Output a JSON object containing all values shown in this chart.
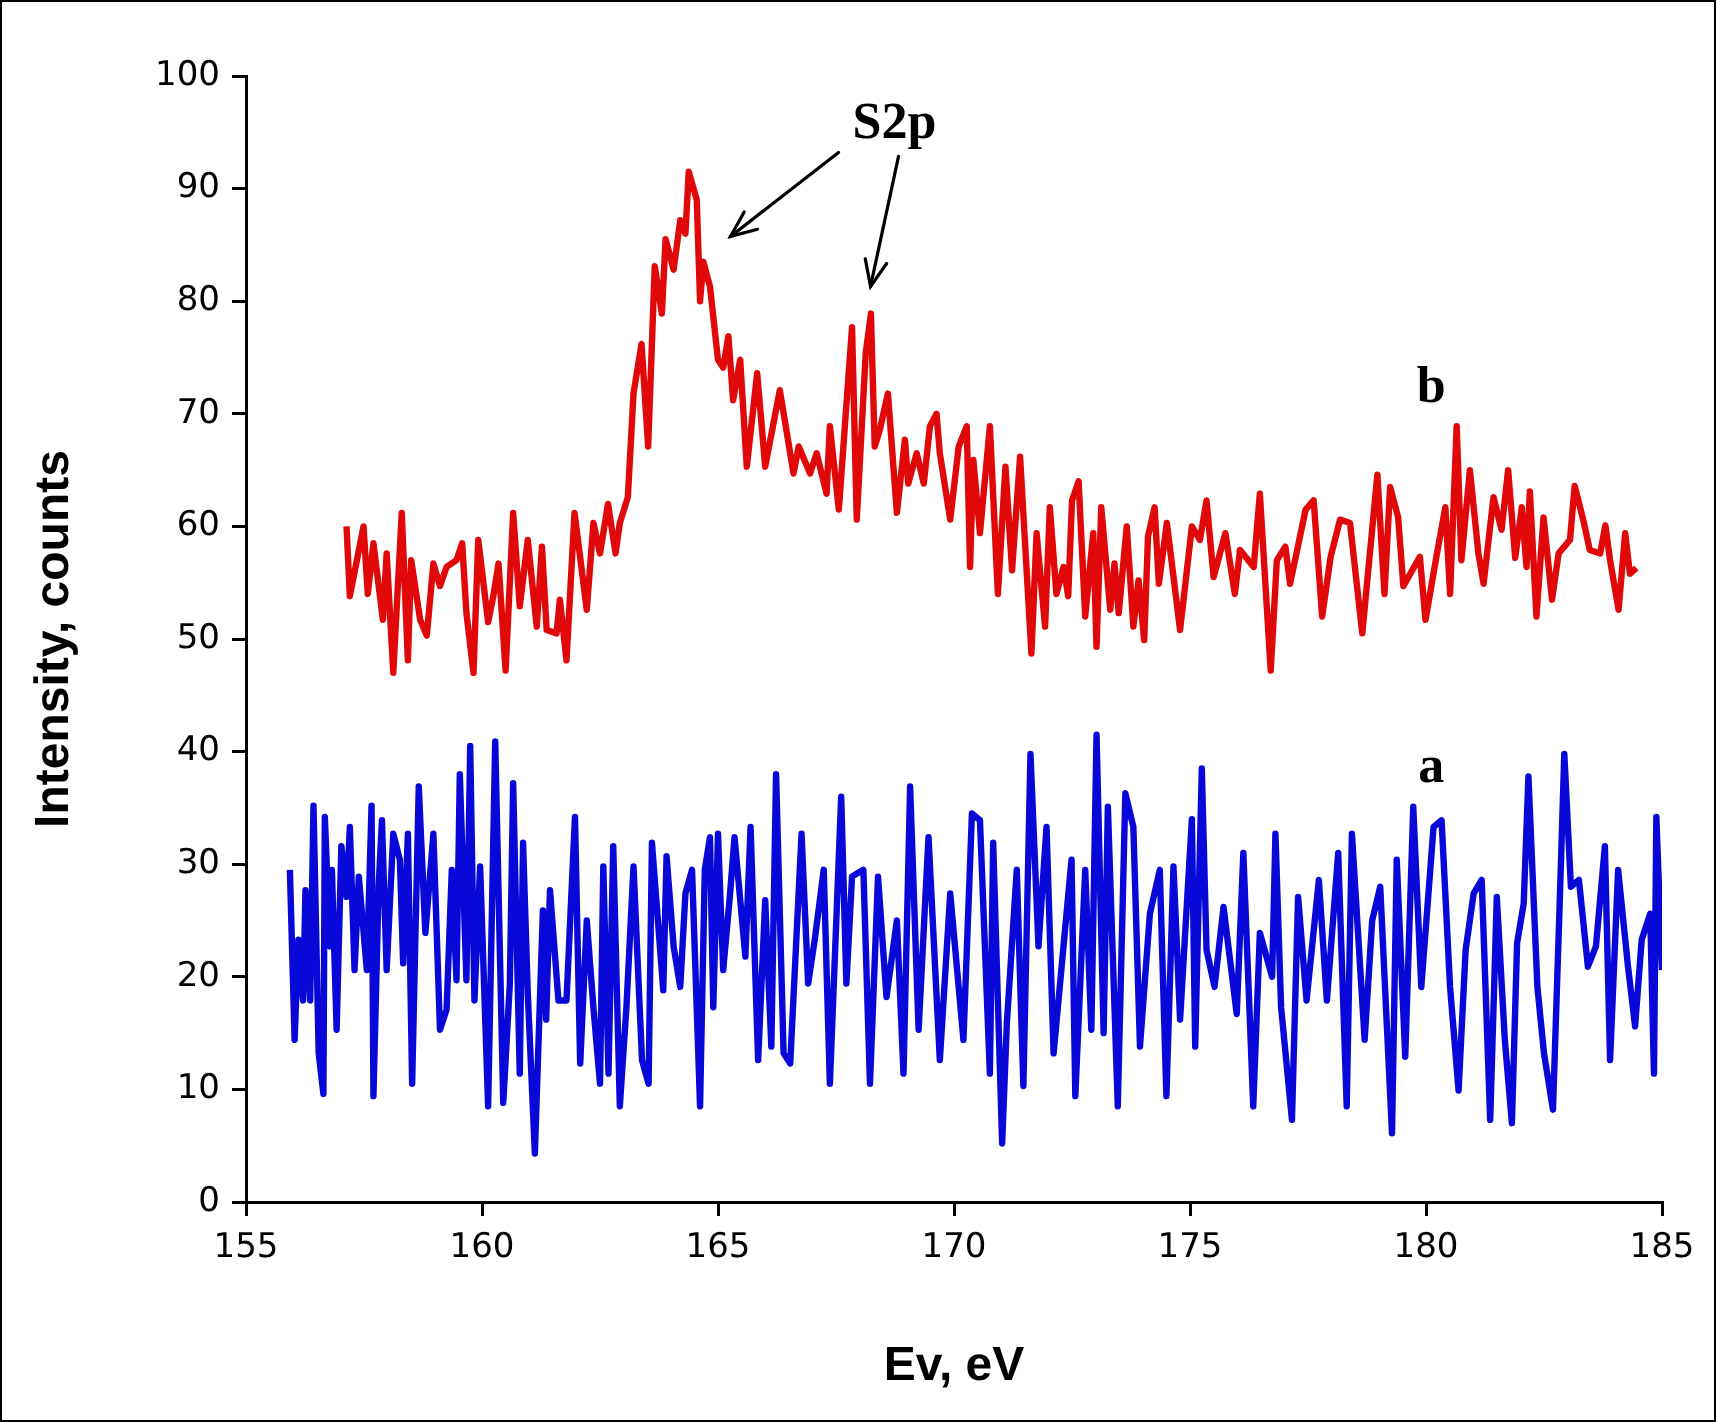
{
  "chart_data": {
    "type": "line",
    "xlabel": "Ev, eV",
    "ylabel": "Intensity, counts",
    "xlim": [
      155,
      185
    ],
    "xticks": [
      155,
      160,
      165,
      170,
      175,
      180,
      185
    ],
    "ylim": [
      0,
      100
    ],
    "yticks": [
      0,
      10,
      20,
      30,
      40,
      50,
      60,
      70,
      80,
      90,
      100
    ],
    "grid": false,
    "legend": false,
    "marker": "none",
    "line_style": "solid",
    "annotations": [
      "S2p"
    ],
    "series": [
      {
        "name": "b",
        "color": "#e00808",
        "x": [
          157.13,
          157.2,
          157.49,
          157.58,
          157.7,
          157.9,
          157.98,
          158.12,
          158.3,
          158.43,
          158.5,
          158.69,
          158.83,
          158.97,
          159.11,
          159.25,
          159.46,
          159.58,
          159.67,
          159.82,
          159.92,
          160.13,
          160.24,
          160.35,
          160.5,
          160.66,
          160.8,
          160.97,
          161.16,
          161.27,
          161.37,
          161.58,
          161.65,
          161.79,
          161.96,
          162.22,
          162.36,
          162.5,
          162.67,
          162.83,
          162.92,
          163.09,
          163.21,
          163.38,
          163.52,
          163.66,
          163.81,
          163.89,
          164.06,
          164.2,
          164.31,
          164.38,
          164.55,
          164.62,
          164.69,
          164.83,
          165.0,
          165.11,
          165.22,
          165.32,
          165.47,
          165.61,
          165.83,
          166.0,
          166.31,
          166.6,
          166.71,
          166.95,
          167.09,
          167.3,
          167.37,
          167.56,
          167.84,
          167.94,
          168.13,
          168.24,
          168.32,
          168.43,
          168.6,
          168.79,
          168.96,
          169.03,
          169.21,
          169.36,
          169.49,
          169.63,
          169.7,
          169.92,
          170.1,
          170.27,
          170.34,
          170.41,
          170.55,
          170.76,
          170.93,
          171.09,
          171.23,
          171.4,
          171.64,
          171.75,
          171.93,
          172.03,
          172.17,
          172.32,
          172.42,
          172.5,
          172.64,
          172.78,
          172.95,
          173.02,
          173.12,
          173.31,
          173.4,
          173.49,
          173.66,
          173.8,
          173.91,
          174.03,
          174.11,
          174.25,
          174.34,
          174.51,
          174.79,
          175.04,
          175.21,
          175.35,
          175.5,
          175.75,
          175.95,
          176.06,
          176.35,
          176.48,
          176.71,
          176.84,
          177.02,
          177.12,
          177.45,
          177.62,
          177.8,
          177.98,
          178.18,
          178.39,
          178.65,
          178.97,
          179.12,
          179.24,
          179.41,
          179.52,
          179.87,
          179.99,
          180.22,
          180.41,
          180.51,
          180.65,
          180.75,
          180.93,
          181.11,
          181.22,
          181.43,
          181.6,
          181.74,
          181.89,
          182.03,
          182.13,
          182.2,
          182.34,
          182.49,
          182.67,
          182.81,
          183.05,
          183.15,
          183.33,
          183.47,
          183.69,
          183.8,
          183.9,
          184.08,
          184.22,
          184.32,
          184.46
        ],
        "values": [
          60,
          53.8,
          60,
          54,
          58.5,
          51.7,
          57.6,
          47,
          61.2,
          48.1,
          57,
          51.7,
          50.3,
          56.7,
          54.7,
          56.4,
          57,
          58.5,
          52.3,
          47,
          58.8,
          51.5,
          53.8,
          56.7,
          47.2,
          61.2,
          52.9,
          58.8,
          51.1,
          58.2,
          50.8,
          50.5,
          53.5,
          48.1,
          61.2,
          52.6,
          60.3,
          57.6,
          62,
          57.6,
          60.3,
          62.6,
          71.8,
          76.2,
          67.1,
          83.1,
          78.9,
          85.5,
          82.8,
          87.2,
          86,
          91.5,
          89,
          80,
          83.5,
          81.3,
          74.8,
          74.1,
          76.9,
          71.2,
          74.8,
          65.3,
          73.6,
          65.3,
          72.1,
          64.7,
          67.1,
          64.7,
          66.5,
          62.9,
          68.9,
          61.5,
          77.7,
          60.6,
          75.4,
          78.9,
          67.1,
          68.6,
          71.8,
          61.2,
          67.7,
          63.8,
          66.5,
          63.8,
          68.9,
          70,
          66.5,
          60.6,
          67.1,
          68.9,
          56.4,
          65.9,
          59.4,
          68.9,
          54,
          65.3,
          56.1,
          66.2,
          48.7,
          59.4,
          51.1,
          61.7,
          54,
          56.4,
          53.8,
          62.3,
          64,
          52,
          59.4,
          49.3,
          61.7,
          52.6,
          56.7,
          52.3,
          60,
          51.1,
          55.2,
          49.9,
          59.1,
          61.7,
          54.9,
          60.3,
          50.8,
          60,
          58.8,
          62.3,
          55.5,
          59.4,
          54,
          57.9,
          56.4,
          62.9,
          47.2,
          57,
          58.2,
          54.9,
          61.5,
          62.3,
          52,
          57.3,
          60.6,
          60.3,
          50.5,
          64.6,
          54,
          63.5,
          60.8,
          54.7,
          57.3,
          51.7,
          57.3,
          61.7,
          54,
          68.9,
          57,
          65,
          57.6,
          54.9,
          62.6,
          59.7,
          65,
          57.2,
          61.7,
          56.4,
          63.1,
          52,
          60.8,
          53.5,
          57.6,
          58.8,
          63.6,
          60.6,
          57.9,
          57.6,
          60.1,
          57,
          52.6,
          59.4,
          55.8,
          56.3
        ]
      },
      {
        "name": "a",
        "color": "#0808d8",
        "x": [
          155.93,
          156.03,
          156.11,
          156.21,
          156.26,
          156.36,
          156.43,
          156.54,
          156.64,
          156.67,
          156.78,
          156.82,
          156.92,
          157.02,
          157.13,
          157.2,
          157.3,
          157.39,
          157.56,
          157.66,
          157.7,
          157.81,
          157.88,
          157.98,
          158.12,
          158.26,
          158.33,
          158.43,
          158.52,
          158.66,
          158.8,
          158.97,
          159.11,
          159.25,
          159.36,
          159.46,
          159.53,
          159.67,
          159.75,
          159.84,
          159.96,
          160.13,
          160.28,
          160.45,
          160.59,
          160.66,
          160.8,
          160.87,
          160.97,
          161.12,
          161.29,
          161.36,
          161.44,
          161.62,
          161.79,
          161.97,
          162.08,
          162.22,
          162.36,
          162.5,
          162.57,
          162.68,
          162.78,
          162.92,
          163.06,
          163.21,
          163.39,
          163.53,
          163.6,
          163.84,
          163.91,
          164.06,
          164.2,
          164.31,
          164.45,
          164.62,
          164.72,
          164.83,
          164.9,
          165.0,
          165.11,
          165.25,
          165.35,
          165.58,
          165.69,
          165.85,
          166.0,
          166.13,
          166.23,
          166.39,
          166.53,
          166.77,
          166.91,
          167.05,
          167.24,
          167.37,
          167.61,
          167.72,
          167.84,
          168.08,
          168.22,
          168.39,
          168.57,
          168.79,
          168.93,
          169.07,
          169.25,
          169.46,
          169.7,
          169.92,
          170.2,
          170.38,
          170.55,
          170.76,
          170.83,
          171.02,
          171.12,
          171.33,
          171.47,
          171.62,
          171.79,
          171.96,
          172.11,
          172.32,
          172.49,
          172.57,
          172.78,
          172.91,
          173.02,
          173.17,
          173.26,
          173.47,
          173.63,
          173.8,
          173.94,
          174.15,
          174.36,
          174.5,
          174.65,
          174.79,
          175.04,
          175.11,
          175.25,
          175.35,
          175.52,
          175.71,
          175.99,
          176.13,
          176.34,
          176.48,
          176.74,
          176.81,
          176.93,
          177.16,
          177.29,
          177.47,
          177.73,
          177.9,
          178.14,
          178.32,
          178.43,
          178.7,
          178.86,
          179.03,
          179.28,
          179.38,
          179.56,
          179.73,
          179.9,
          180.16,
          180.33,
          180.51,
          180.69,
          180.84,
          181.01,
          181.18,
          181.36,
          181.5,
          181.67,
          181.82,
          181.93,
          182.07,
          182.17,
          182.36,
          182.5,
          182.69,
          182.83,
          182.93,
          183.07,
          183.24,
          183.43,
          183.6,
          183.79,
          183.9,
          184.07,
          184.28,
          184.43,
          184.57,
          184.75,
          184.83,
          184.88,
          185.0
        ],
        "values": [
          29.5,
          14.4,
          23.3,
          17.9,
          27.7,
          17.9,
          35.2,
          13.2,
          9.6,
          34.2,
          22.7,
          29.5,
          15.3,
          31.6,
          27.1,
          33.3,
          20.6,
          28.9,
          20.6,
          35.2,
          9.4,
          28,
          33.9,
          20.6,
          32.7,
          30.4,
          21.2,
          32.7,
          10.5,
          36.9,
          23.9,
          32.7,
          15.3,
          17.1,
          29.5,
          19.7,
          38,
          19.7,
          40.5,
          17.9,
          29.8,
          8.5,
          40.9,
          8.8,
          19.4,
          37.2,
          11.4,
          31.9,
          18.5,
          4.3,
          25.9,
          16.2,
          27.7,
          17.9,
          17.9,
          34.2,
          12.3,
          25,
          17.3,
          10.5,
          29.8,
          11.4,
          31.6,
          8.5,
          17.3,
          29.8,
          12.6,
          10.5,
          31.9,
          18.8,
          30.7,
          22.7,
          19.1,
          27.4,
          29.5,
          8.5,
          29.5,
          32.4,
          17.3,
          32.7,
          20.6,
          27.1,
          32.4,
          21.8,
          33.3,
          12.6,
          26.8,
          13.8,
          38,
          13.2,
          12.3,
          32.7,
          19.4,
          23.3,
          29.5,
          10.5,
          36,
          19.4,
          28.9,
          29.5,
          10.5,
          28.9,
          18.2,
          25,
          11.4,
          36.9,
          15.3,
          32.4,
          12.6,
          27.4,
          14.4,
          34.5,
          33.9,
          11.4,
          31.9,
          5.2,
          15.9,
          29.5,
          10.3,
          39.8,
          22.7,
          33.3,
          13.2,
          22.7,
          30.4,
          9.4,
          29.5,
          15.3,
          41.5,
          15,
          35.1,
          8.5,
          36.3,
          33.3,
          13.8,
          25.6,
          29.5,
          9.4,
          29.8,
          16.2,
          34,
          13.8,
          38.5,
          22.4,
          19.1,
          26.2,
          16.7,
          31,
          8.5,
          23.9,
          20,
          32.7,
          17.3,
          7.3,
          27.1,
          17.9,
          28.6,
          17.9,
          31,
          8.5,
          32.7,
          14.4,
          25,
          28,
          6.1,
          30.4,
          12.9,
          35.1,
          19.1,
          33.3,
          33.9,
          19.1,
          9.9,
          22.4,
          27.4,
          28.6,
          7.3,
          27.1,
          14.4,
          7,
          23,
          26.5,
          37.8,
          19.1,
          13.2,
          8.2,
          26.2,
          39.8,
          28,
          28.6,
          20.9,
          22.7,
          31.6,
          12.6,
          29.5,
          20.9,
          15.6,
          23.3,
          25.6,
          11.4,
          34.2,
          20.6
        ]
      }
    ]
  }
}
